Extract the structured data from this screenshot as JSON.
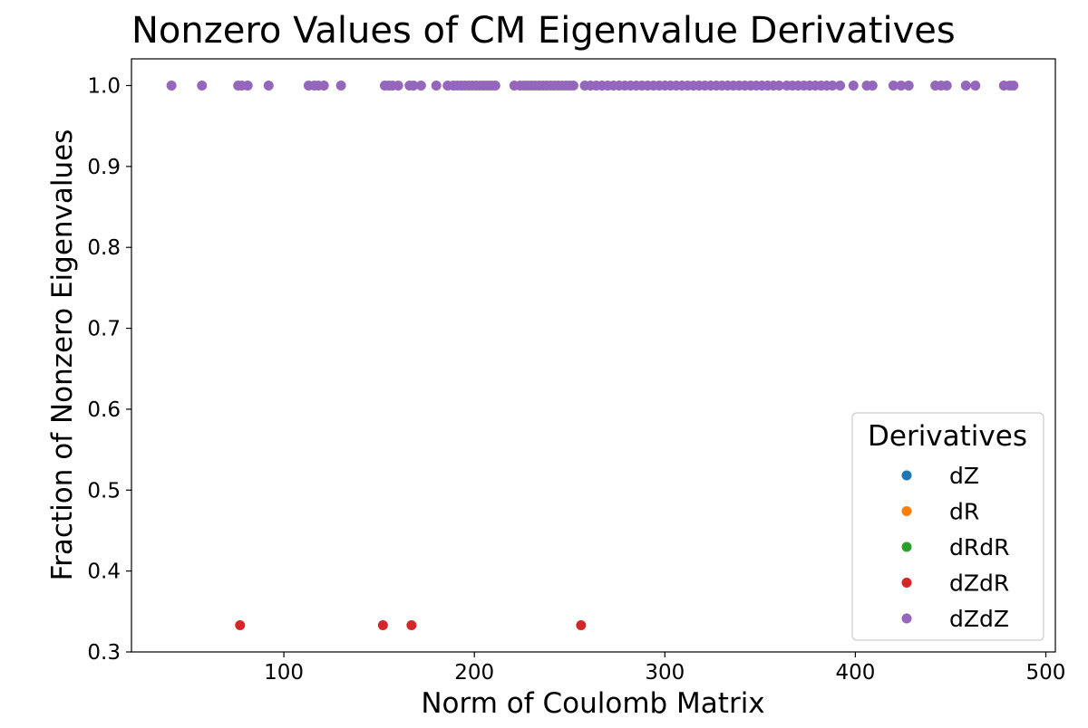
{
  "chart_data": {
    "type": "scatter",
    "title": "Nonzero Values of CM Eigenvalue Derivatives",
    "xlabel": "Norm of Coulomb Matrix",
    "ylabel": "Fraction of Nonzero Eigenvalues",
    "xlim": [
      20,
      505
    ],
    "ylim": [
      0.3,
      1.033
    ],
    "x_ticks": [
      100,
      200,
      300,
      400,
      500
    ],
    "y_ticks": [
      0.3,
      0.4,
      0.5,
      0.6,
      0.7,
      0.8,
      0.9,
      1.0
    ],
    "grid": false,
    "legend": {
      "title": "Derivatives",
      "placement": "bottom-right"
    },
    "series": [
      {
        "name": "dZ",
        "color": "#1f77b4",
        "x": [],
        "y": []
      },
      {
        "name": "dR",
        "color": "#ff7f0e",
        "x": [],
        "y": []
      },
      {
        "name": "dRdR",
        "color": "#2ca02c",
        "x": [],
        "y": []
      },
      {
        "name": "dZdR",
        "color": "#d62728",
        "x": [
          77,
          152,
          167,
          256
        ],
        "y": [
          0.333,
          0.333,
          0.333,
          0.333
        ]
      },
      {
        "name": "dZdZ",
        "color": "#9467bd",
        "x": [
          41,
          57,
          76,
          78,
          81,
          92,
          113,
          116,
          118,
          121,
          130,
          153,
          155,
          157,
          160,
          166,
          168,
          172,
          180,
          186,
          189,
          191,
          193,
          195,
          197,
          199,
          201,
          203,
          205,
          207,
          209,
          211,
          221,
          224,
          226,
          228,
          230,
          232,
          234,
          236,
          238,
          240,
          242,
          244,
          246,
          248,
          250,
          252,
          258,
          261,
          264,
          267,
          270,
          273,
          276,
          279,
          282,
          285,
          288,
          291,
          294,
          297,
          300,
          303,
          306,
          309,
          312,
          315,
          318,
          321,
          324,
          327,
          330,
          333,
          336,
          339,
          342,
          345,
          348,
          351,
          354,
          357,
          360,
          364,
          367,
          370,
          373,
          376,
          379,
          382,
          385,
          388,
          392,
          399,
          406,
          409,
          420,
          424,
          428,
          442,
          445,
          448,
          458,
          463,
          478,
          481,
          483
        ],
        "y": [
          1.0,
          1.0,
          1.0,
          1.0,
          1.0,
          1.0,
          1.0,
          1.0,
          1.0,
          1.0,
          1.0,
          1.0,
          1.0,
          1.0,
          1.0,
          1.0,
          1.0,
          1.0,
          1.0,
          1.0,
          1.0,
          1.0,
          1.0,
          1.0,
          1.0,
          1.0,
          1.0,
          1.0,
          1.0,
          1.0,
          1.0,
          1.0,
          1.0,
          1.0,
          1.0,
          1.0,
          1.0,
          1.0,
          1.0,
          1.0,
          1.0,
          1.0,
          1.0,
          1.0,
          1.0,
          1.0,
          1.0,
          1.0,
          1.0,
          1.0,
          1.0,
          1.0,
          1.0,
          1.0,
          1.0,
          1.0,
          1.0,
          1.0,
          1.0,
          1.0,
          1.0,
          1.0,
          1.0,
          1.0,
          1.0,
          1.0,
          1.0,
          1.0,
          1.0,
          1.0,
          1.0,
          1.0,
          1.0,
          1.0,
          1.0,
          1.0,
          1.0,
          1.0,
          1.0,
          1.0,
          1.0,
          1.0,
          1.0,
          1.0,
          1.0,
          1.0,
          1.0,
          1.0,
          1.0,
          1.0,
          1.0,
          1.0,
          1.0,
          1.0,
          1.0,
          1.0,
          1.0,
          1.0,
          1.0,
          1.0,
          1.0,
          1.0,
          1.0,
          1.0,
          1.0,
          1.0,
          1.0
        ]
      }
    ]
  }
}
